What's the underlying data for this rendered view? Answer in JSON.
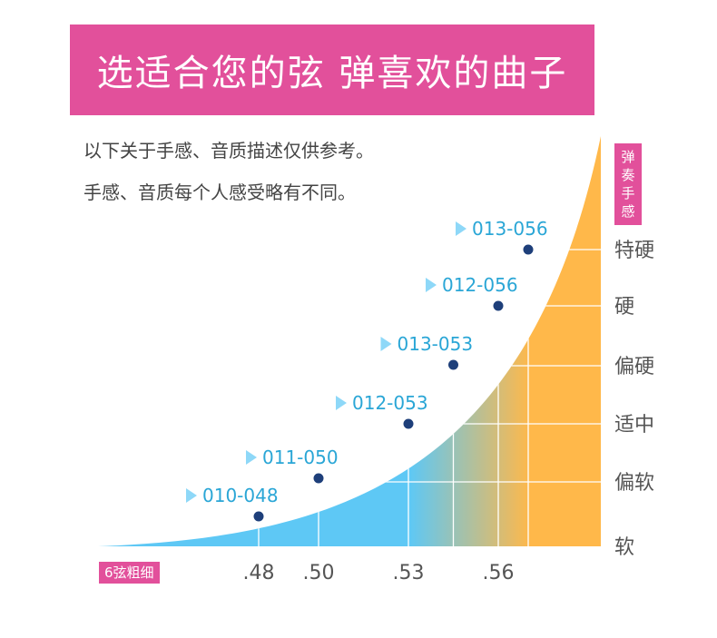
{
  "header": {
    "title": "选适合您的弦 弹喜欢的曲子"
  },
  "notes": [
    "以下关于手感、音质描述仅供参考。",
    "手感、音质每个人感受略有不同。"
  ],
  "chart_data": {
    "type": "scatter",
    "y_axis_label": "弹奏手感",
    "x_axis_label": "6弦粗细",
    "x_ticks": [
      ".48",
      ".50",
      ".53",
      ".56"
    ],
    "y_categories": [
      "软",
      "偏软",
      "适中",
      "偏硬",
      "硬",
      "特硬"
    ],
    "points": [
      {
        "label": "010-048",
        "x": 0.48,
        "feel": "软"
      },
      {
        "label": "011-050",
        "x": 0.5,
        "feel": "偏软"
      },
      {
        "label": "012-053",
        "x": 0.53,
        "feel": "适中"
      },
      {
        "label": "013-053",
        "x": 0.545,
        "feel": "偏硬"
      },
      {
        "label": "012-056",
        "x": 0.56,
        "feel": "硬"
      },
      {
        "label": "013-056",
        "x": 0.57,
        "feel": "特硬"
      }
    ],
    "colors": {
      "soft": "#5ec8f5",
      "hard": "#ffb84a",
      "point": "#1e3f7a",
      "label": "#2aa6d6",
      "arrow": "#8ed8f8",
      "grid": "#ffffff"
    }
  }
}
